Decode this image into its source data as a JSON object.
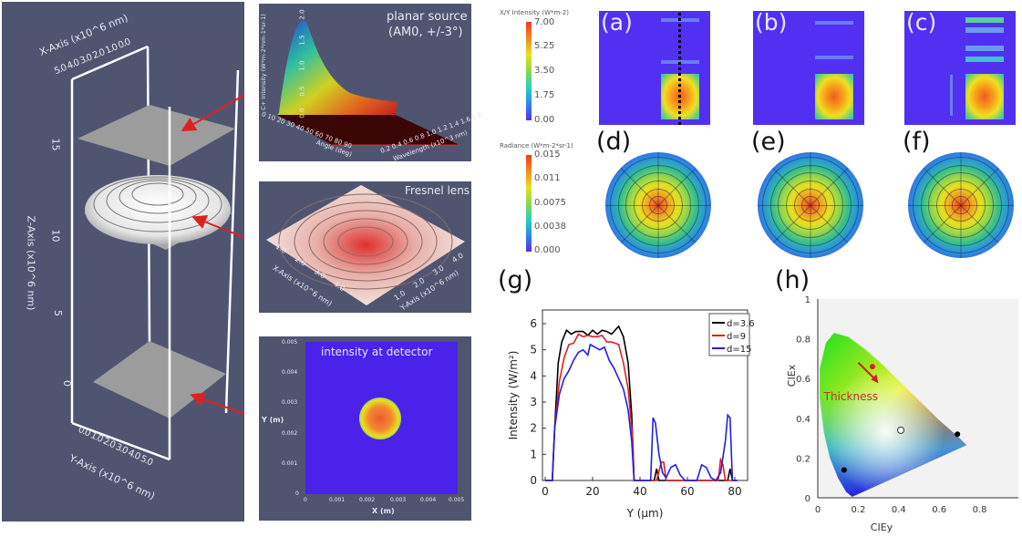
{
  "panel_3d": {
    "x_axis_title": "X-Axis (x10^6 nm)",
    "x_ticks": "5.0 4.0 3.0 2.0 1.0 0.0",
    "z_axis_title": "Z-Axis (x10^6 nm)",
    "z_ticks": [
      "15",
      "10",
      "5",
      "0"
    ],
    "y_axis_title": "Y-Axis (x10^6 nm)",
    "y_ticks": "0.0 1.0 2.0 3.0 4.0 5.0",
    "arrow_color": "#e02020"
  },
  "source_panel": {
    "title_line1": "planar source",
    "title_line2": "(AM0, +/-3°)",
    "z_label": "C+ Intensity (W*m-2*nm-1*sr-1)",
    "z_ticks": [
      "0.0",
      "0.5",
      "1.0",
      "1.5",
      "2.0"
    ],
    "angle_label": "Angle (deg)",
    "angle_ticks": "0 10 20 30 40 50 60 70 80 90",
    "wavelength_label": "Wavelength (x10^3 nm)",
    "wavelength_ticks": "0.2 0.4 0.6 0.8 1.0 1.2 1.4 1.6 1.8"
  },
  "lens_panel": {
    "title": "Fresnel lens",
    "x_label": "X-Axis (x10^6 nm)",
    "x_ticks": "1.0 2.0 3.0 4.0",
    "y_label": "Y-Axis (x10^6 nm)",
    "y_ticks": "1.0 2.0 3.0 4.0"
  },
  "detector_panel": {
    "title": "intensity at detector",
    "y_label": "Y (m)",
    "x_label": "X (m)",
    "y_ticks": [
      "0.005",
      "0.004",
      "0.003",
      "0.002",
      "0.001",
      "0"
    ],
    "x_ticks": [
      "0",
      "0.001",
      "0.002",
      "0.003",
      "0.004",
      "0.005"
    ]
  },
  "colorbar_intensity": {
    "title": "X/Y Intensity (W*m-2)",
    "ticks": [
      "7.00",
      "5.25",
      "3.50",
      "1.75",
      "0.00"
    ]
  },
  "colorbar_radiance": {
    "title": "Radiance (W*m-2*sr-1)",
    "ticks": [
      "0.015",
      "0.011",
      "0.0075",
      "0.0038",
      "0.000"
    ]
  },
  "panel_labels": [
    "(a)",
    "(b)",
    "(c)",
    "(d)",
    "(e)",
    "(f)",
    "(g)",
    "(h)"
  ],
  "chart_data": [
    {
      "type": "line",
      "panel": "(g)",
      "xlabel": "Y (μm)",
      "ylabel": "Intensity (W/m²)",
      "xlim": [
        0,
        82
      ],
      "ylim": [
        0,
        6.5
      ],
      "xticks": [
        "0",
        "20",
        "40",
        "60",
        "80"
      ],
      "yticks": [
        "0",
        "1",
        "2",
        "3",
        "4",
        "5",
        "6"
      ],
      "legend": "top-right",
      "series": [
        {
          "name": "d=3.6",
          "color": "#000000",
          "points": [
            [
              0,
              0
            ],
            [
              3,
              0
            ],
            [
              4,
              2
            ],
            [
              5.5,
              4.5
            ],
            [
              7,
              5.3
            ],
            [
              9,
              5.75
            ],
            [
              11,
              5.6
            ],
            [
              13,
              5.7
            ],
            [
              16,
              5.7
            ],
            [
              18,
              5.55
            ],
            [
              20,
              5.75
            ],
            [
              22,
              5.6
            ],
            [
              24,
              5.75
            ],
            [
              26,
              5.7
            ],
            [
              28,
              5.6
            ],
            [
              31,
              5.9
            ],
            [
              33,
              5.5
            ],
            [
              35,
              4.5
            ],
            [
              36.5,
              2.5
            ],
            [
              37.5,
              0
            ],
            [
              46,
              0
            ],
            [
              47,
              0.45
            ],
            [
              48,
              0
            ],
            [
              77,
              0
            ],
            [
              78,
              0.45
            ],
            [
              79,
              0
            ],
            [
              81,
              0
            ]
          ]
        },
        {
          "name": "d=9",
          "color": "#e02020",
          "points": [
            [
              0,
              0
            ],
            [
              3,
              0
            ],
            [
              4,
              2
            ],
            [
              6,
              3.8
            ],
            [
              8,
              4.7
            ],
            [
              10,
              5.2
            ],
            [
              12,
              5.25
            ],
            [
              14,
              5.6
            ],
            [
              16,
              5.5
            ],
            [
              18,
              5.55
            ],
            [
              20,
              5.5
            ],
            [
              22,
              5.5
            ],
            [
              24,
              5.55
            ],
            [
              26,
              5.3
            ],
            [
              28,
              5.3
            ],
            [
              31,
              5.2
            ],
            [
              33,
              4.5
            ],
            [
              35,
              3.5
            ],
            [
              37,
              1.5
            ],
            [
              37.5,
              0
            ],
            [
              47,
              0
            ],
            [
              49,
              0.7
            ],
            [
              50,
              0.7
            ],
            [
              51,
              0
            ],
            [
              73,
              0
            ],
            [
              74,
              0.8
            ],
            [
              75,
              0.6
            ],
            [
              76,
              0
            ],
            [
              81,
              0
            ]
          ]
        },
        {
          "name": "d=15",
          "color": "#2020e0",
          "points": [
            [
              0,
              0
            ],
            [
              3,
              0
            ],
            [
              4,
              2
            ],
            [
              6,
              3.3
            ],
            [
              8,
              3.9
            ],
            [
              10,
              4.2
            ],
            [
              12,
              4.6
            ],
            [
              14,
              4.9
            ],
            [
              16,
              5.0
            ],
            [
              18,
              4.8
            ],
            [
              19,
              5.2
            ],
            [
              21,
              5.1
            ],
            [
              23,
              5.0
            ],
            [
              25,
              5.1
            ],
            [
              27,
              4.6
            ],
            [
              29,
              4.3
            ],
            [
              31,
              3.9
            ],
            [
              33,
              3.5
            ],
            [
              35,
              2.7
            ],
            [
              36.5,
              1.5
            ],
            [
              37.5,
              0
            ],
            [
              44.5,
              0
            ],
            [
              45.5,
              2.4
            ],
            [
              46.5,
              2.2
            ],
            [
              48,
              1
            ],
            [
              49.5,
              0.3
            ],
            [
              51,
              0.1
            ],
            [
              53,
              0.5
            ],
            [
              55,
              0.6
            ],
            [
              57,
              0.2
            ],
            [
              59,
              0
            ],
            [
              64,
              0
            ],
            [
              66,
              0.6
            ],
            [
              68,
              0.5
            ],
            [
              70,
              0.1
            ],
            [
              72,
              0
            ],
            [
              74,
              0.3
            ],
            [
              76,
              1.5
            ],
            [
              77,
              2.5
            ],
            [
              78,
              2.4
            ],
            [
              79,
              0
            ],
            [
              81,
              0
            ]
          ]
        }
      ]
    },
    {
      "type": "scatter",
      "panel": "(h)",
      "xlabel": "CIEy",
      "ylabel": "CIEx",
      "xlim": [
        0,
        0.95
      ],
      "ylim": [
        0,
        1
      ],
      "xticks": [
        "0",
        "0.2",
        "0.4",
        "0.6",
        "0.8"
      ],
      "yticks": [
        "0",
        "0.2",
        "0.4",
        "0.6",
        "0.8",
        "1"
      ],
      "annotation": "Thickness",
      "points": [
        {
          "x": 0.27,
          "y": 0.66,
          "color": "#e02020",
          "style": "filled"
        },
        {
          "x": 0.41,
          "y": 0.34,
          "color": "#ffffff",
          "style": "open"
        },
        {
          "x": 0.69,
          "y": 0.32,
          "color": "#000000",
          "style": "filled"
        },
        {
          "x": 0.13,
          "y": 0.14,
          "color": "#000000",
          "style": "filled"
        }
      ]
    }
  ]
}
